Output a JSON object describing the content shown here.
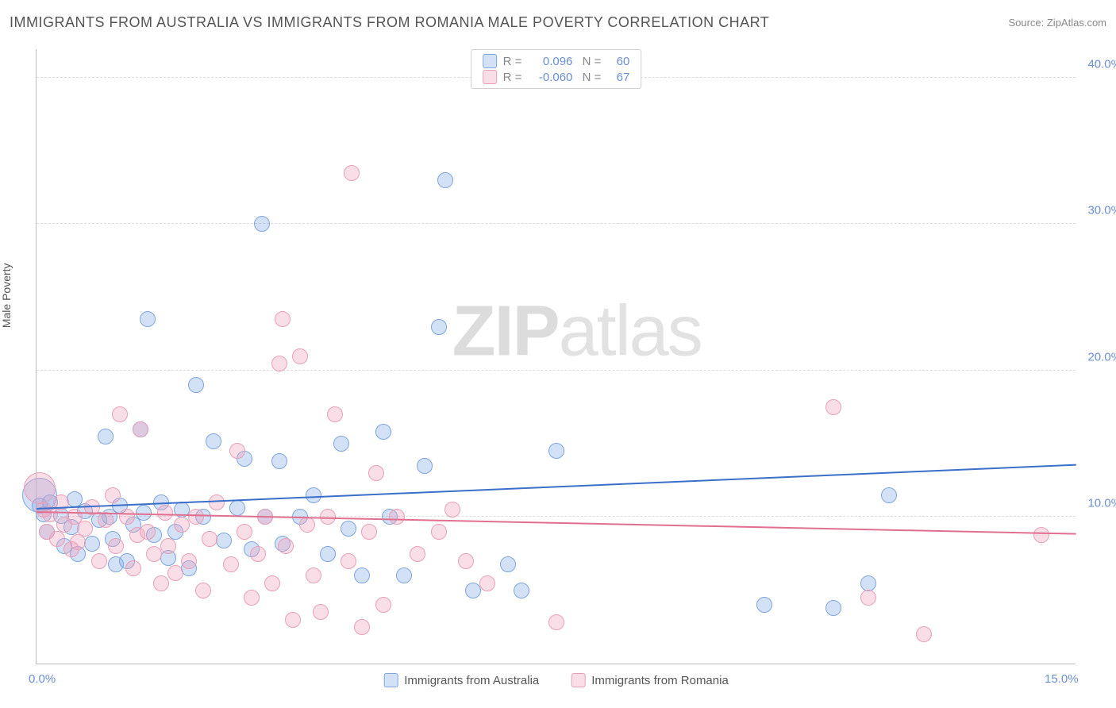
{
  "header": {
    "title": "IMMIGRANTS FROM AUSTRALIA VS IMMIGRANTS FROM ROMANIA MALE POVERTY CORRELATION CHART",
    "source": "Source: ZipAtlas.com"
  },
  "ylabel": "Male Poverty",
  "watermark": {
    "z": "Z",
    "ip": "IP",
    "atlas": "atlas"
  },
  "chart": {
    "type": "scatter",
    "background_color": "#ffffff",
    "grid_color": "#dcdcdc",
    "axis_color": "#bcbcbc",
    "tick_color": "#6b8fd4",
    "xlim": [
      0,
      15
    ],
    "ylim": [
      0,
      42
    ],
    "xticks": [
      {
        "value": 0.0,
        "label": "0.0%"
      },
      {
        "value": 15.0,
        "label": "15.0%"
      }
    ],
    "yticks": [
      {
        "value": 10.0,
        "label": "10.0%"
      },
      {
        "value": 20.0,
        "label": "20.0%"
      },
      {
        "value": 30.0,
        "label": "30.0%"
      },
      {
        "value": 40.0,
        "label": "40.0%"
      }
    ],
    "series": [
      {
        "id": "australia",
        "label": "Immigrants from Australia",
        "fill_color": "rgba(130,170,230,0.35)",
        "stroke_color": "#7fa6de",
        "line_color": "#3b6fc9",
        "R": "0.096",
        "N": "60",
        "marker_radius": 10,
        "trend": {
          "y_at_xmin": 10.5,
          "y_at_xmax": 13.5
        },
        "points": [
          {
            "x": 0.05,
            "y": 11.5,
            "r": 22
          },
          {
            "x": 0.05,
            "y": 10.8
          },
          {
            "x": 0.1,
            "y": 10.2
          },
          {
            "x": 0.15,
            "y": 9.0
          },
          {
            "x": 0.2,
            "y": 11.0
          },
          {
            "x": 0.35,
            "y": 10.1
          },
          {
            "x": 0.4,
            "y": 8.0
          },
          {
            "x": 0.5,
            "y": 9.3
          },
          {
            "x": 0.55,
            "y": 11.2
          },
          {
            "x": 0.6,
            "y": 7.5
          },
          {
            "x": 0.7,
            "y": 10.4
          },
          {
            "x": 0.8,
            "y": 8.2
          },
          {
            "x": 0.9,
            "y": 9.8
          },
          {
            "x": 1.0,
            "y": 15.5
          },
          {
            "x": 1.05,
            "y": 10.0
          },
          {
            "x": 1.1,
            "y": 8.5
          },
          {
            "x": 1.15,
            "y": 6.8
          },
          {
            "x": 1.2,
            "y": 10.8
          },
          {
            "x": 1.3,
            "y": 7.0
          },
          {
            "x": 1.4,
            "y": 9.5
          },
          {
            "x": 1.5,
            "y": 16.0
          },
          {
            "x": 1.55,
            "y": 10.3
          },
          {
            "x": 1.6,
            "y": 23.5
          },
          {
            "x": 1.7,
            "y": 8.8
          },
          {
            "x": 1.8,
            "y": 11.0
          },
          {
            "x": 1.9,
            "y": 7.2
          },
          {
            "x": 2.0,
            "y": 9.0
          },
          {
            "x": 2.1,
            "y": 10.5
          },
          {
            "x": 2.2,
            "y": 6.5
          },
          {
            "x": 2.3,
            "y": 19.0
          },
          {
            "x": 2.4,
            "y": 10.0
          },
          {
            "x": 2.55,
            "y": 15.2
          },
          {
            "x": 2.7,
            "y": 8.4
          },
          {
            "x": 2.9,
            "y": 10.6
          },
          {
            "x": 3.0,
            "y": 14.0
          },
          {
            "x": 3.1,
            "y": 7.8
          },
          {
            "x": 3.25,
            "y": 30.0
          },
          {
            "x": 3.3,
            "y": 10.0
          },
          {
            "x": 3.5,
            "y": 13.8
          },
          {
            "x": 3.55,
            "y": 8.2
          },
          {
            "x": 3.8,
            "y": 10.0
          },
          {
            "x": 4.0,
            "y": 11.5
          },
          {
            "x": 4.2,
            "y": 7.5
          },
          {
            "x": 4.4,
            "y": 15.0
          },
          {
            "x": 4.5,
            "y": 9.2
          },
          {
            "x": 4.7,
            "y": 6.0
          },
          {
            "x": 5.0,
            "y": 15.8
          },
          {
            "x": 5.1,
            "y": 10.0
          },
          {
            "x": 5.3,
            "y": 6.0
          },
          {
            "x": 5.6,
            "y": 13.5
          },
          {
            "x": 5.8,
            "y": 23.0
          },
          {
            "x": 5.9,
            "y": 33.0
          },
          {
            "x": 6.3,
            "y": 5.0
          },
          {
            "x": 6.8,
            "y": 6.8
          },
          {
            "x": 7.0,
            "y": 5.0
          },
          {
            "x": 7.5,
            "y": 14.5
          },
          {
            "x": 10.5,
            "y": 4.0
          },
          {
            "x": 12.3,
            "y": 11.5
          },
          {
            "x": 11.5,
            "y": 3.8
          },
          {
            "x": 12.0,
            "y": 5.5
          }
        ]
      },
      {
        "id": "romania",
        "label": "Immigrants from Romania",
        "fill_color": "rgba(240,160,185,0.35)",
        "stroke_color": "#e8a0b8",
        "line_color": "#e07090",
        "R": "-0.060",
        "N": "67",
        "marker_radius": 10,
        "trend": {
          "y_at_xmin": 10.3,
          "y_at_xmax": 8.8
        },
        "points": [
          {
            "x": 0.05,
            "y": 12.0,
            "r": 20
          },
          {
            "x": 0.1,
            "y": 10.5
          },
          {
            "x": 0.15,
            "y": 9.0
          },
          {
            "x": 0.2,
            "y": 10.2
          },
          {
            "x": 0.3,
            "y": 8.5
          },
          {
            "x": 0.35,
            "y": 11.0
          },
          {
            "x": 0.4,
            "y": 9.5
          },
          {
            "x": 0.5,
            "y": 7.8
          },
          {
            "x": 0.55,
            "y": 10.0
          },
          {
            "x": 0.6,
            "y": 8.3
          },
          {
            "x": 0.7,
            "y": 9.2
          },
          {
            "x": 0.8,
            "y": 10.7
          },
          {
            "x": 0.9,
            "y": 7.0
          },
          {
            "x": 1.0,
            "y": 9.8
          },
          {
            "x": 1.1,
            "y": 11.5
          },
          {
            "x": 1.15,
            "y": 8.0
          },
          {
            "x": 1.2,
            "y": 17.0
          },
          {
            "x": 1.3,
            "y": 10.0
          },
          {
            "x": 1.4,
            "y": 6.5
          },
          {
            "x": 1.45,
            "y": 8.8
          },
          {
            "x": 1.5,
            "y": 16.0
          },
          {
            "x": 1.6,
            "y": 9.0
          },
          {
            "x": 1.7,
            "y": 7.5
          },
          {
            "x": 1.8,
            "y": 5.5
          },
          {
            "x": 1.85,
            "y": 10.3
          },
          {
            "x": 1.9,
            "y": 8.0
          },
          {
            "x": 2.0,
            "y": 6.2
          },
          {
            "x": 2.1,
            "y": 9.5
          },
          {
            "x": 2.2,
            "y": 7.0
          },
          {
            "x": 2.3,
            "y": 10.0
          },
          {
            "x": 2.4,
            "y": 5.0
          },
          {
            "x": 2.5,
            "y": 8.5
          },
          {
            "x": 2.6,
            "y": 11.0
          },
          {
            "x": 2.8,
            "y": 6.8
          },
          {
            "x": 2.9,
            "y": 14.5
          },
          {
            "x": 3.0,
            "y": 9.0
          },
          {
            "x": 3.1,
            "y": 4.5
          },
          {
            "x": 3.2,
            "y": 7.5
          },
          {
            "x": 3.3,
            "y": 10.0
          },
          {
            "x": 3.4,
            "y": 5.5
          },
          {
            "x": 3.5,
            "y": 20.5
          },
          {
            "x": 3.55,
            "y": 23.5
          },
          {
            "x": 3.6,
            "y": 8.0
          },
          {
            "x": 3.7,
            "y": 3.0
          },
          {
            "x": 3.8,
            "y": 21.0
          },
          {
            "x": 3.9,
            "y": 9.5
          },
          {
            "x": 4.0,
            "y": 6.0
          },
          {
            "x": 4.1,
            "y": 3.5
          },
          {
            "x": 4.2,
            "y": 10.0
          },
          {
            "x": 4.3,
            "y": 17.0
          },
          {
            "x": 4.5,
            "y": 7.0
          },
          {
            "x": 4.55,
            "y": 33.5
          },
          {
            "x": 4.7,
            "y": 2.5
          },
          {
            "x": 4.8,
            "y": 9.0
          },
          {
            "x": 4.9,
            "y": 13.0
          },
          {
            "x": 5.0,
            "y": 4.0
          },
          {
            "x": 5.2,
            "y": 10.0
          },
          {
            "x": 5.5,
            "y": 7.5
          },
          {
            "x": 5.8,
            "y": 9.0
          },
          {
            "x": 6.2,
            "y": 7.0
          },
          {
            "x": 6.5,
            "y": 5.5
          },
          {
            "x": 7.5,
            "y": 2.8
          },
          {
            "x": 11.5,
            "y": 17.5
          },
          {
            "x": 12.0,
            "y": 4.5
          },
          {
            "x": 12.8,
            "y": 2.0
          },
          {
            "x": 14.5,
            "y": 8.8
          },
          {
            "x": 6.0,
            "y": 10.5
          }
        ]
      }
    ]
  }
}
